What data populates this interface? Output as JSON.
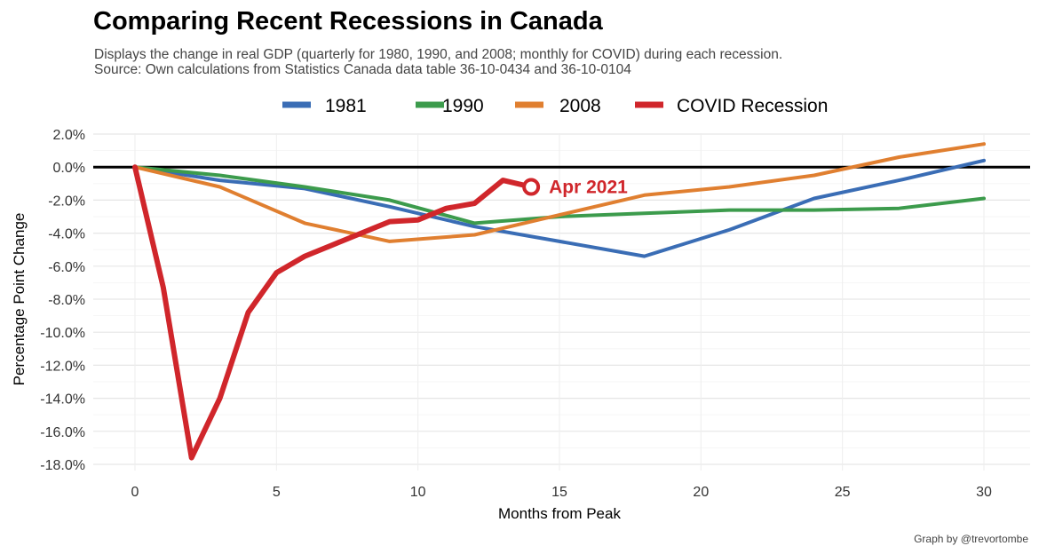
{
  "title": "Comparing Recent Recessions in Canada",
  "subtitle": [
    "Displays the change in real GDP (quarterly for 1980, 1990, and 2008; monthly for COVID) during each recession.",
    "Source: Own calculations from Statistics Canada data table 36-10-0434 and 36-10-0104"
  ],
  "caption": "Graph by @trevortombe",
  "chart_data": {
    "type": "line",
    "xlabel": "Months from Peak",
    "ylabel": "Percentage Point Change",
    "xlim": [
      0,
      30
    ],
    "ylim": [
      -18,
      2
    ],
    "x_ticks": [
      0,
      5,
      10,
      15,
      20,
      25,
      30
    ],
    "x_tick_labels": [
      "0",
      "5",
      "10",
      "15",
      "20",
      "25",
      "30"
    ],
    "y_ticks": [
      2,
      0,
      -2,
      -4,
      -6,
      -8,
      -10,
      -12,
      -14,
      -16,
      -18
    ],
    "y_tick_labels": [
      "2.0%",
      "0.0%",
      "-2.0%",
      "-4.0%",
      "-6.0%",
      "-8.0%",
      "-10.0%",
      "-12.0%",
      "-14.0%",
      "-16.0%",
      "-18.0%"
    ],
    "grid": true,
    "legend_position": "top",
    "zero_line": true,
    "series": [
      {
        "name": "1981",
        "color": "#3a6db5",
        "width": 4,
        "x": [
          0,
          3,
          6,
          9,
          12,
          15,
          18,
          21,
          24,
          27,
          30
        ],
        "y": [
          0,
          -0.8,
          -1.3,
          -2.4,
          -3.6,
          -4.5,
          -5.4,
          -3.8,
          -1.9,
          -0.8,
          0.4
        ]
      },
      {
        "name": "1990",
        "color": "#3c9b4c",
        "width": 4,
        "x": [
          0,
          3,
          6,
          9,
          12,
          15,
          18,
          21,
          24,
          27,
          30
        ],
        "y": [
          0,
          -0.5,
          -1.2,
          -2.0,
          -3.4,
          -3.0,
          -2.8,
          -2.6,
          -2.6,
          -2.5,
          -1.9
        ]
      },
      {
        "name": "2008",
        "color": "#e07f30",
        "width": 4,
        "x": [
          0,
          3,
          6,
          9,
          12,
          15,
          18,
          21,
          24,
          27,
          30
        ],
        "y": [
          0,
          -1.2,
          -3.4,
          -4.5,
          -4.1,
          -2.9,
          -1.7,
          -1.2,
          -0.5,
          0.6,
          1.4
        ]
      },
      {
        "name": "COVID Recession",
        "color": "#d0262b",
        "width": 6,
        "x": [
          0,
          1,
          2,
          3,
          4,
          5,
          6,
          7,
          8,
          9,
          10,
          11,
          12,
          13,
          14
        ],
        "y": [
          0,
          -7.3,
          -17.6,
          -14.0,
          -8.8,
          -6.4,
          -5.4,
          -4.7,
          -4.0,
          -3.3,
          -3.2,
          -2.5,
          -2.2,
          -0.8,
          -1.2
        ]
      }
    ],
    "annotations": [
      {
        "text": "Apr 2021",
        "x": 14,
        "y": -1.2,
        "series": "COVID Recession"
      }
    ]
  }
}
